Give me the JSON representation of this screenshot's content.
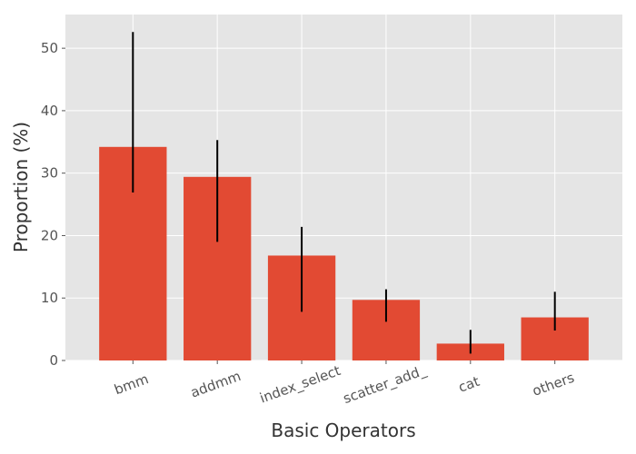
{
  "chart_data": {
    "type": "bar",
    "title": "",
    "xlabel": "Basic Operators",
    "ylabel": "Proportion (%)",
    "categories": [
      "bmm",
      "addmm",
      "index_select",
      "scatter_add_",
      "cat",
      "others"
    ],
    "values": [
      34.2,
      29.4,
      16.8,
      9.7,
      2.7,
      6.9
    ],
    "error_low": [
      26.9,
      19.0,
      7.8,
      6.2,
      1.1,
      4.8
    ],
    "error_high": [
      52.6,
      35.3,
      21.4,
      11.4,
      4.9,
      11.0
    ],
    "ylim": [
      0,
      55.4
    ],
    "yticks": [
      0,
      10,
      20,
      30,
      40,
      50
    ],
    "grid": true,
    "colors": {
      "bar": "#E24A33",
      "error_bar": "#000000",
      "background": "#E5E5E5",
      "grid": "#FFFFFF"
    }
  }
}
